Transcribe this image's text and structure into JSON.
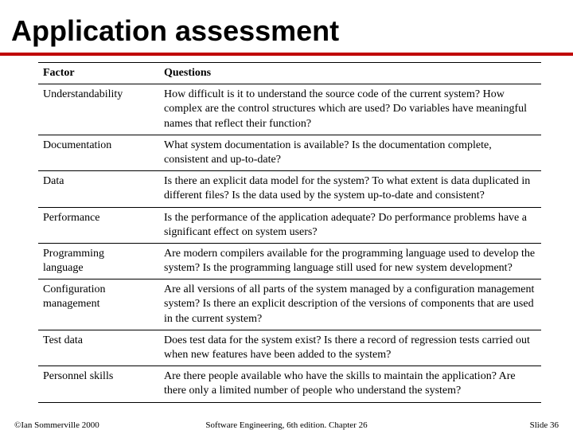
{
  "title": "Application assessment",
  "table": {
    "headers": {
      "factor": "Factor",
      "questions": "Questions"
    },
    "rows": [
      {
        "factor": "Understandability",
        "questions": "How difficult is it to understand the source code of the current system? How complex are the control structures which are used? Do variables have meaningful names that reflect their function?"
      },
      {
        "factor": "Documentation",
        "questions": "What system documentation is available? Is the documentation complete, consistent and up-to-date?"
      },
      {
        "factor": "Data",
        "questions": "Is there an explicit data model for the system? To what extent is data duplicated in different files? Is the data used by the system up-to-date and consistent?"
      },
      {
        "factor": "Performance",
        "questions": "Is the performance of the application adequate? Do performance problems have a significant effect on system users?"
      },
      {
        "factor": "Programming\nlanguage",
        "questions": "Are modern compilers available for the programming language used to develop the system? Is the programming language still used for new system development?"
      },
      {
        "factor": "Configuration\nmanagement",
        "questions": "Are all versions of all parts of the system managed by a configuration management system? Is there an explicit description of the versions of components that are used in the current system?"
      },
      {
        "factor": "Test data",
        "questions": "Does test data for the system exist? Is there a record of regression tests carried out when new features have been added to the system?"
      },
      {
        "factor": "Personnel skills",
        "questions": "Are there people available who have the skills to maintain the application? Are there only a limited number of people who understand the system?"
      }
    ]
  },
  "footer": {
    "left": "©Ian Sommerville 2000",
    "center": "Software Engineering, 6th edition. Chapter 26",
    "right": "Slide 36"
  },
  "colors": {
    "accent": "#c00000",
    "text": "#000000",
    "background": "#ffffff"
  }
}
